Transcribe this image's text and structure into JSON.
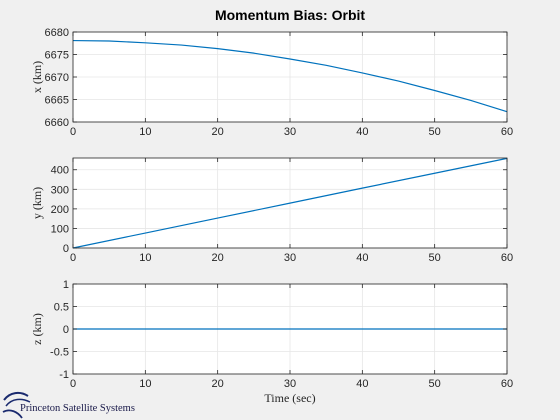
{
  "figure": {
    "title": "Momentum Bias: Orbit",
    "logo_text": "Princeton Satellite Systems",
    "background": "#f0f0f0",
    "axes_background": "#ffffff",
    "line_color": "#0072bd",
    "grid_color": "#e6e6e6"
  },
  "chart_data": [
    {
      "type": "line",
      "ylabel": "x (km)",
      "xlabel": "",
      "xlim": [
        0,
        60
      ],
      "ylim": [
        6660,
        6680
      ],
      "xticks": [
        0,
        10,
        20,
        30,
        40,
        50,
        60
      ],
      "yticks": [
        6660,
        6665,
        6670,
        6675,
        6680
      ],
      "grid": true,
      "series": [
        {
          "x": [
            0,
            5,
            10,
            15,
            20,
            25,
            30,
            35,
            40,
            45,
            50,
            55,
            60
          ],
          "y": [
            6678.1,
            6678.0,
            6677.6,
            6677.1,
            6676.3,
            6675.3,
            6674.0,
            6672.6,
            6670.9,
            6669.1,
            6667.0,
            6664.8,
            6662.3
          ]
        }
      ]
    },
    {
      "type": "line",
      "ylabel": "y (km)",
      "xlabel": "",
      "xlim": [
        0,
        60
      ],
      "ylim": [
        0,
        460
      ],
      "xticks": [
        0,
        10,
        20,
        30,
        40,
        50,
        60
      ],
      "yticks": [
        0,
        100,
        200,
        300,
        400
      ],
      "grid": true,
      "series": [
        {
          "x": [
            0,
            10,
            20,
            30,
            40,
            50,
            60
          ],
          "y": [
            0,
            76.5,
            153,
            229.5,
            306,
            382,
            458
          ]
        }
      ]
    },
    {
      "type": "line",
      "ylabel": "z (km)",
      "xlabel": "Time (sec)",
      "xlim": [
        0,
        60
      ],
      "ylim": [
        -1,
        1
      ],
      "xticks": [
        0,
        10,
        20,
        30,
        40,
        50,
        60
      ],
      "yticks": [
        -1,
        -0.5,
        0,
        0.5,
        1
      ],
      "grid": true,
      "series": [
        {
          "x": [
            0,
            60
          ],
          "y": [
            0,
            0
          ]
        }
      ]
    }
  ]
}
